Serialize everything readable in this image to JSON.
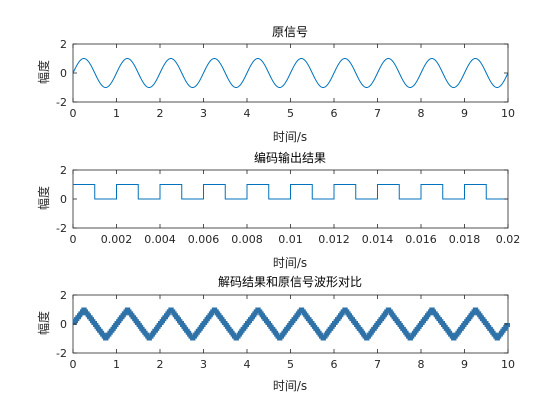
{
  "chart_data": [
    {
      "type": "line",
      "title": "原信号",
      "xlabel": "时间/s",
      "ylabel": "幅度",
      "xlim": [
        0,
        10
      ],
      "ylim": [
        -2,
        2
      ],
      "xticks": [
        0,
        1,
        2,
        3,
        4,
        5,
        6,
        7,
        8,
        9,
        10
      ],
      "yticks": [
        -2,
        0,
        2
      ],
      "grid": false,
      "color": "#0072BD",
      "signal": {
        "kind": "sine",
        "amplitude": 1,
        "period": 1,
        "phase_cycles": 0
      }
    },
    {
      "type": "line",
      "title": "编码输出结果",
      "xlabel": "时间/s",
      "ylabel": "幅度",
      "xlim": [
        0,
        0.02
      ],
      "ylim": [
        -2,
        2
      ],
      "xticks": [
        0,
        0.002,
        0.004,
        0.006,
        0.008,
        0.01,
        0.012,
        0.014,
        0.016,
        0.018,
        0.02
      ],
      "yticks": [
        -2,
        0,
        2
      ],
      "grid": false,
      "color": "#0072BD",
      "signal": {
        "kind": "pulse",
        "high": 1,
        "low": 0,
        "period": 0.002,
        "first_high_end": 0.001
      }
    },
    {
      "type": "line",
      "title": "解码结果和原信号波形对比",
      "xlabel": "时间/s",
      "ylabel": "幅度",
      "xlim": [
        0,
        10
      ],
      "ylim": [
        -2,
        2
      ],
      "xticks": [
        0,
        1,
        2,
        3,
        4,
        5,
        6,
        7,
        8,
        9,
        10
      ],
      "yticks": [
        -2,
        0,
        2
      ],
      "grid": false,
      "color": "#2E72A8",
      "signal": {
        "kind": "staircase-triangle",
        "amplitude": 1,
        "period": 1,
        "phase_cycles": 0,
        "levels": 16
      }
    }
  ]
}
